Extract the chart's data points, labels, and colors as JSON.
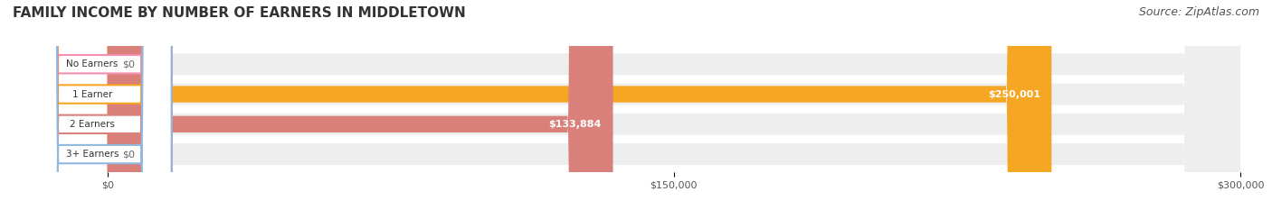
{
  "title": "FAMILY INCOME BY NUMBER OF EARNERS IN MIDDLETOWN",
  "source": "Source: ZipAtlas.com",
  "categories": [
    "No Earners",
    "1 Earner",
    "2 Earners",
    "3+ Earners"
  ],
  "values": [
    0,
    250001,
    133884,
    0
  ],
  "value_labels": [
    "$0",
    "$250,001",
    "$133,884",
    "$0"
  ],
  "bar_colors": [
    "#f48fb1",
    "#f5a623",
    "#d9807a",
    "#90b8e0"
  ],
  "label_colors": [
    "#f48fb1",
    "#f5a623",
    "#d9807a",
    "#90b8e0"
  ],
  "bar_bg_color": "#eeeeee",
  "xlim": [
    0,
    300000
  ],
  "xticks": [
    0,
    150000,
    300000
  ],
  "xtick_labels": [
    "$0",
    "$150,000",
    "$300,000"
  ],
  "title_fontsize": 11,
  "source_fontsize": 9,
  "figsize": [
    14.06,
    2.33
  ],
  "dpi": 100
}
